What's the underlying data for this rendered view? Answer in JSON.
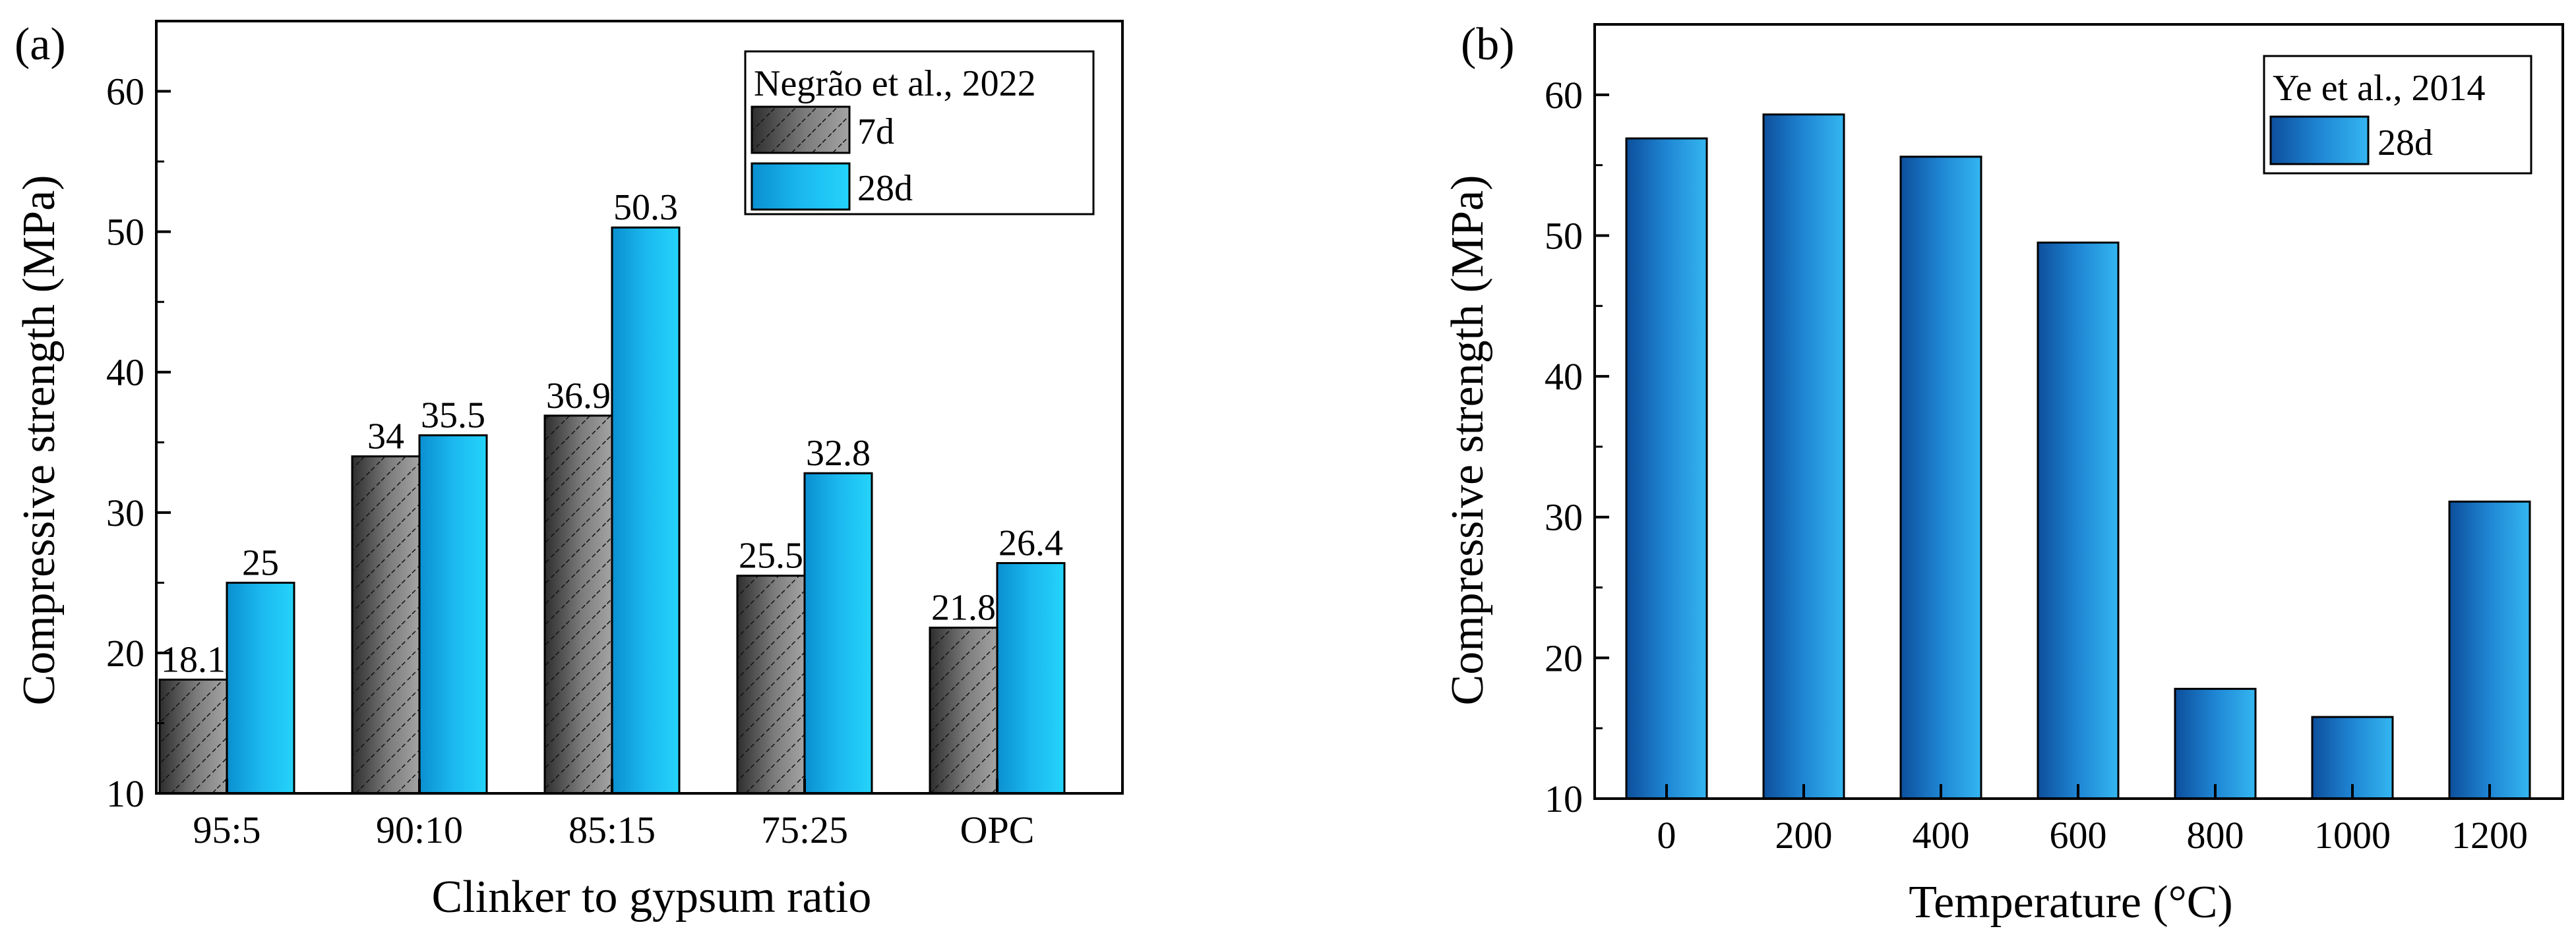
{
  "chart_data": [
    {
      "panel_label": "(a)",
      "type": "bar",
      "xlabel": "Clinker to gypsum ratio",
      "ylabel": "Compressive strength (MPa)",
      "ylim": [
        10,
        65
      ],
      "yticks": [
        10,
        20,
        30,
        40,
        50,
        60
      ],
      "categories": [
        "95:5",
        "90:10",
        "85:15",
        "75:25",
        "OPC"
      ],
      "legend_title": "Negrão et al., 2022",
      "legend_position": "top-right",
      "series": [
        {
          "name": "7d",
          "values": [
            18.1,
            34,
            36.9,
            25.5,
            21.8
          ],
          "labels": [
            "18.1",
            "34",
            "36.9",
            "25.5",
            "21.8"
          ],
          "style": "gray-hatched"
        },
        {
          "name": "28d",
          "values": [
            25,
            35.5,
            50.3,
            32.8,
            26.4
          ],
          "labels": [
            "25",
            "35.5",
            "50.3",
            "32.8",
            "26.4"
          ],
          "style": "cyan-gradient"
        }
      ]
    },
    {
      "panel_label": "(b)",
      "type": "bar",
      "xlabel": "Temperature (°C)",
      "ylabel": "Compressive strength (MPa)",
      "ylim": [
        10,
        65
      ],
      "yticks": [
        10,
        20,
        30,
        40,
        50,
        60
      ],
      "categories": [
        "0",
        "200",
        "400",
        "600",
        "800",
        "1000",
        "1200"
      ],
      "legend_title": "Ye et al., 2014",
      "legend_position": "top-right",
      "series": [
        {
          "name": "28d",
          "values": [
            56.9,
            58.6,
            55.6,
            49.5,
            17.8,
            15.8,
            31.1
          ],
          "style": "blue-gradient"
        }
      ]
    }
  ],
  "colors": {
    "gray_dark": "#2e2e2e",
    "gray_light": "#9a9a9a",
    "cyan_dark": "#0a8fd0",
    "cyan_light": "#22d0f8",
    "blue_dark": "#0d4f9c",
    "blue_light": "#2fb1ee",
    "axis": "#000000"
  }
}
